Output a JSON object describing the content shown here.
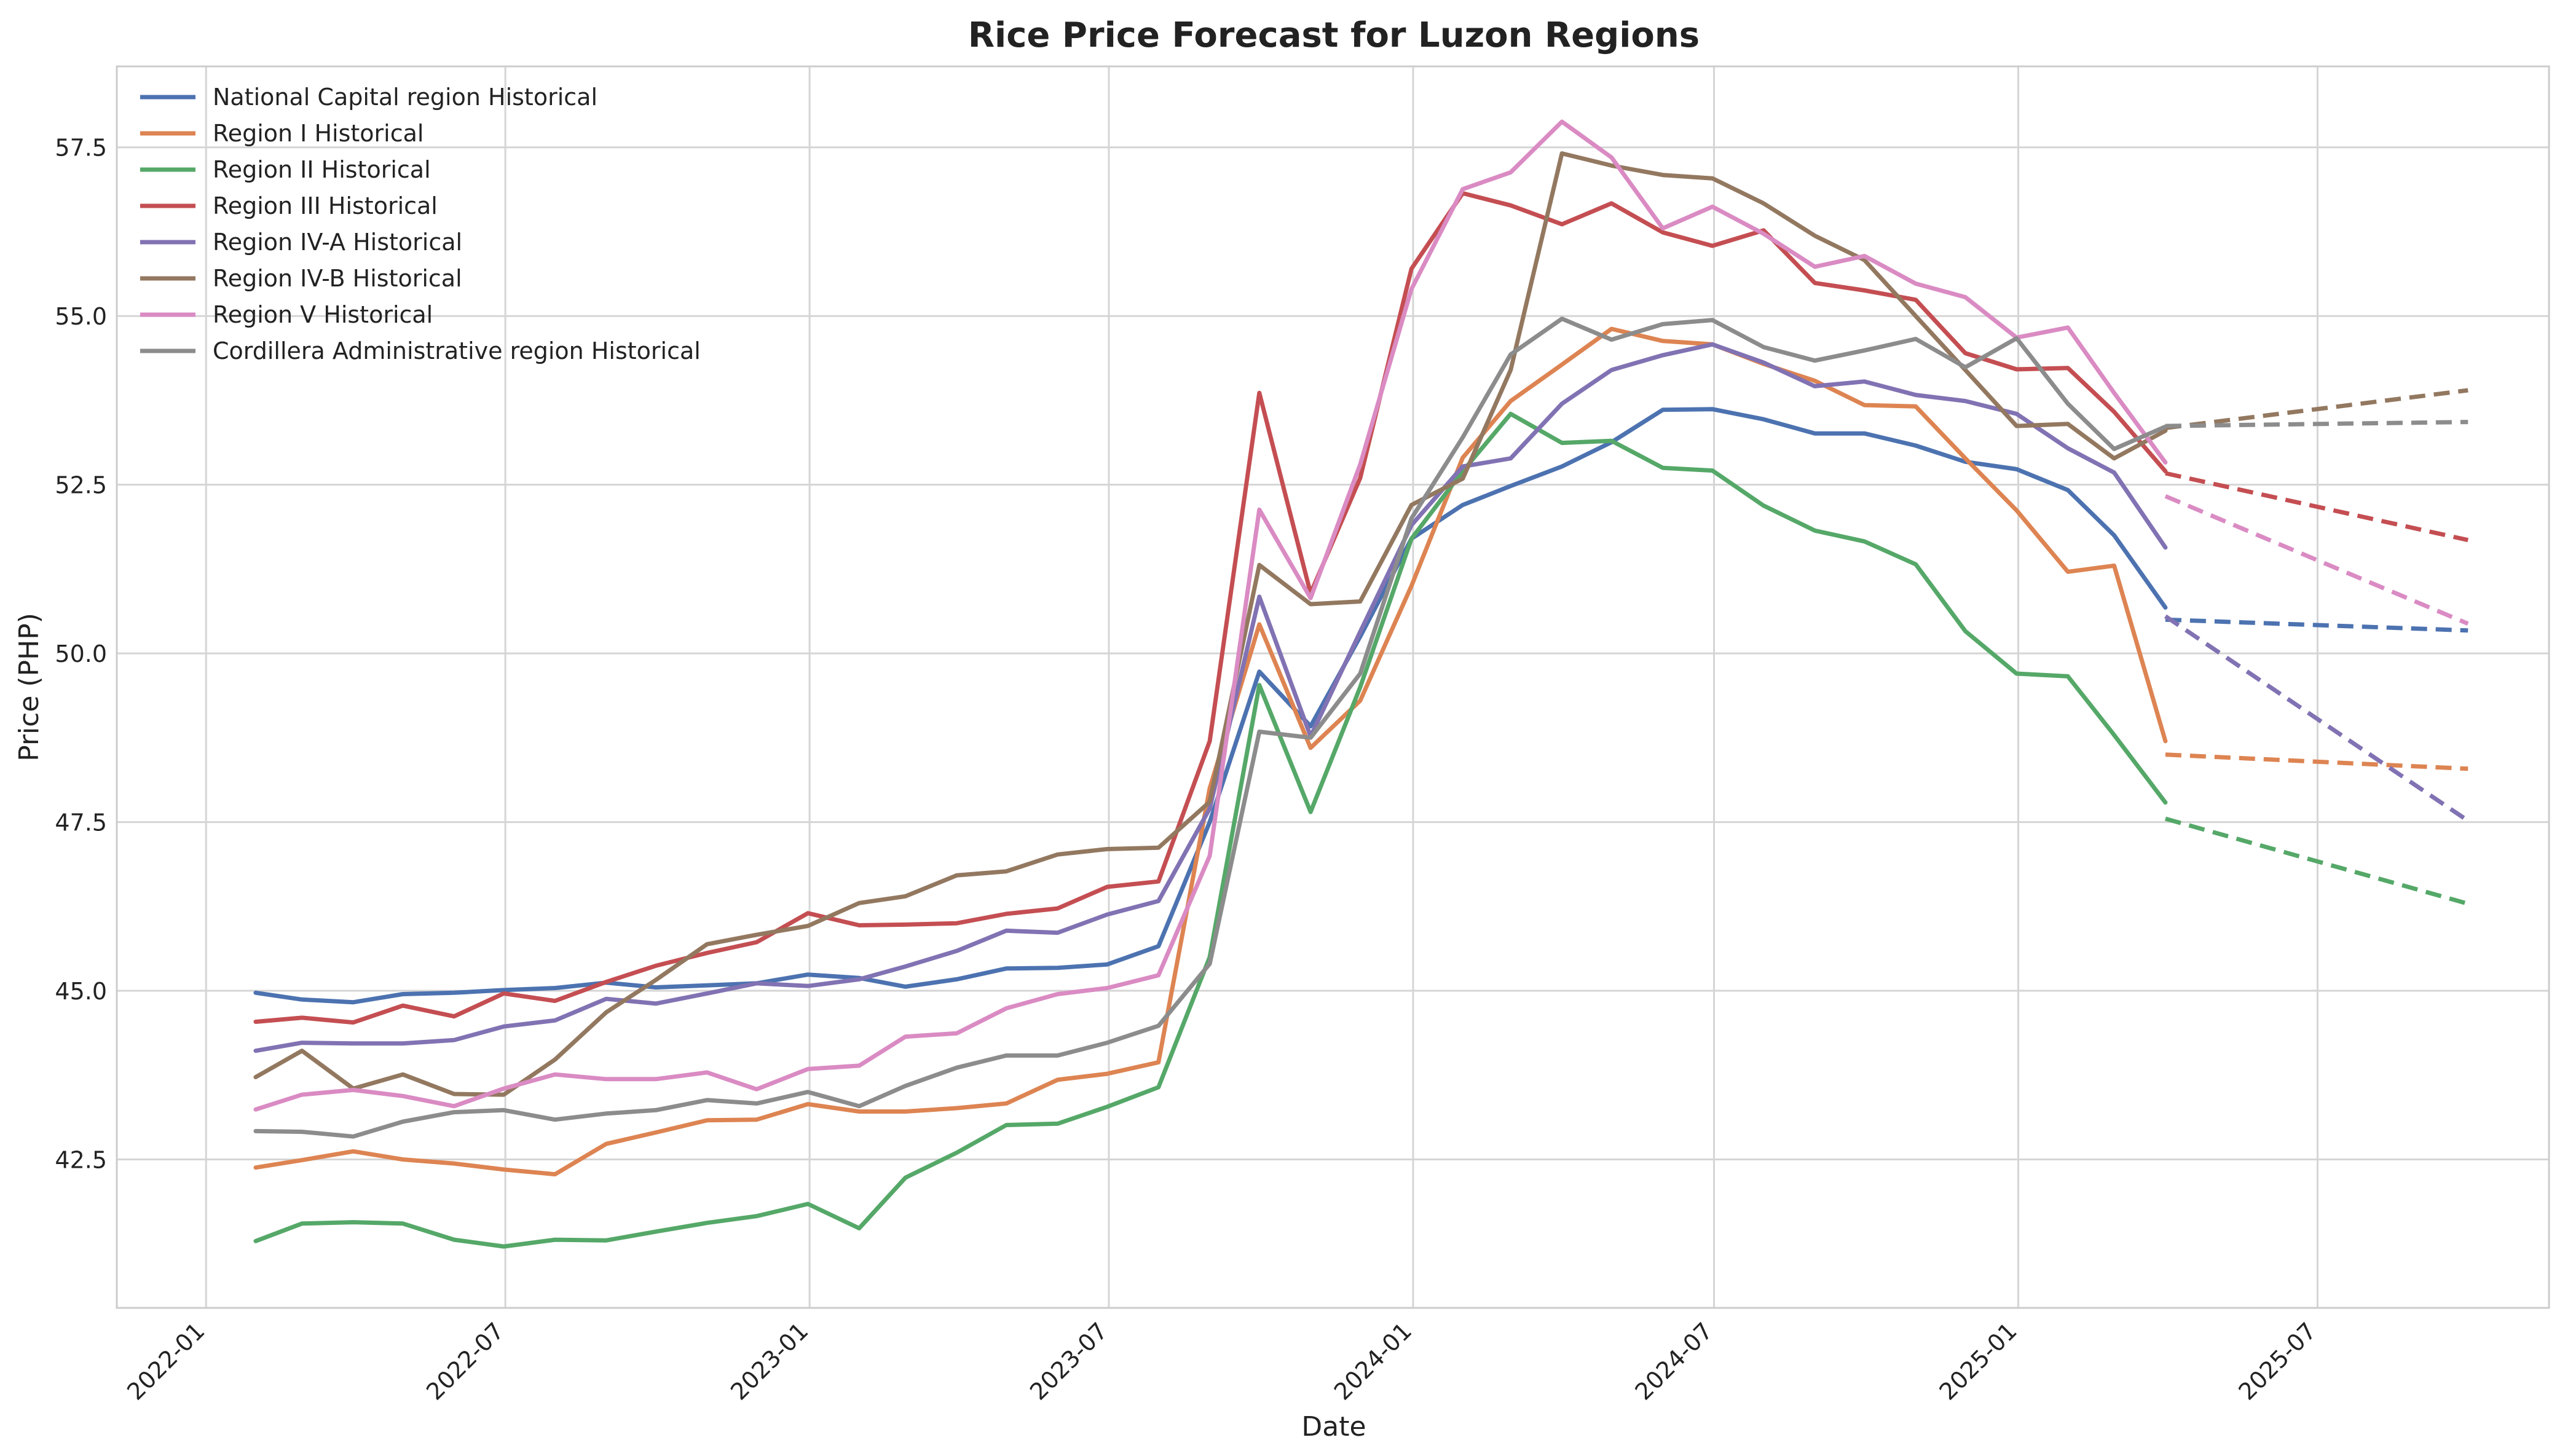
{
  "chart_data": {
    "type": "line",
    "title": "Rice Price Forecast for Luzon Regions",
    "xlabel": "Date",
    "ylabel": "Price (PHP)",
    "grid": true,
    "legend_position": "top-left",
    "x_domain": [
      "2021-11-08",
      "2025-11-18"
    ],
    "ylim": [
      40.3,
      58.7
    ],
    "x_ticks": [
      "2022-01",
      "2022-07",
      "2023-01",
      "2023-07",
      "2024-01",
      "2024-07",
      "2025-01",
      "2025-07"
    ],
    "y_ticks": [
      "42.5",
      "45.0",
      "47.5",
      "50.0",
      "52.5",
      "55.0",
      "57.5"
    ],
    "historical_dates": [
      "2022-01-31",
      "2022-02-28",
      "2022-03-31",
      "2022-04-30",
      "2022-05-31",
      "2022-06-30",
      "2022-07-31",
      "2022-08-31",
      "2022-09-30",
      "2022-10-31",
      "2022-11-30",
      "2022-12-31",
      "2023-01-31",
      "2023-02-28",
      "2023-03-31",
      "2023-04-30",
      "2023-05-31",
      "2023-06-30",
      "2023-07-31",
      "2023-08-31",
      "2023-09-30",
      "2023-10-31",
      "2023-11-30",
      "2023-12-31",
      "2024-01-31",
      "2024-02-29",
      "2024-03-31",
      "2024-04-30",
      "2024-05-31",
      "2024-06-30",
      "2024-07-31",
      "2024-08-31",
      "2024-09-30",
      "2024-10-31",
      "2024-11-30",
      "2024-12-31",
      "2025-01-31",
      "2025-02-28",
      "2025-03-31"
    ],
    "forecast_dates": [
      "2025-03-31",
      "2025-09-30"
    ],
    "series": [
      {
        "name": "National Capital region Historical",
        "color": "#4c72b0",
        "values": [
          44.97,
          44.87,
          44.83,
          44.95,
          44.97,
          45.01,
          45.04,
          45.12,
          45.05,
          45.08,
          45.11,
          45.24,
          45.19,
          45.06,
          45.17,
          45.33,
          45.34,
          45.39,
          45.66,
          47.5,
          49.73,
          48.92,
          50.25,
          51.7,
          52.2,
          52.48,
          52.77,
          53.13,
          53.61,
          53.62,
          53.47,
          53.26,
          53.26,
          53.08,
          52.84,
          52.73,
          52.42,
          51.75,
          50.68
        ],
        "forecast": [
          50.5,
          50.34
        ]
      },
      {
        "name": "Region I Historical",
        "color": "#dd8452",
        "values": [
          42.38,
          42.49,
          42.62,
          42.5,
          42.44,
          42.35,
          42.28,
          42.73,
          42.9,
          43.08,
          43.09,
          43.32,
          43.21,
          43.21,
          43.26,
          43.33,
          43.68,
          43.77,
          43.94,
          48.0,
          50.43,
          48.6,
          49.3,
          51.0,
          52.9,
          53.74,
          54.28,
          54.81,
          54.63,
          54.58,
          54.29,
          54.04,
          53.68,
          53.66,
          52.89,
          52.12,
          51.21,
          51.3,
          48.7
        ],
        "forecast": [
          48.5,
          48.29
        ]
      },
      {
        "name": "Region II Historical",
        "color": "#55a868",
        "values": [
          41.29,
          41.55,
          41.57,
          41.55,
          41.31,
          41.21,
          41.31,
          41.3,
          41.43,
          41.56,
          41.66,
          41.84,
          41.48,
          42.23,
          42.6,
          43.01,
          43.03,
          43.28,
          43.57,
          45.5,
          49.53,
          47.65,
          49.5,
          51.7,
          52.7,
          53.55,
          53.12,
          53.15,
          52.75,
          52.71,
          52.19,
          51.82,
          51.66,
          51.32,
          50.33,
          49.7,
          49.66,
          48.79,
          47.79
        ],
        "forecast": [
          47.55,
          46.29
        ]
      },
      {
        "name": "Region III Historical",
        "color": "#c44e52",
        "values": [
          44.54,
          44.6,
          44.53,
          44.78,
          44.62,
          44.96,
          44.85,
          45.13,
          45.37,
          45.56,
          45.72,
          46.15,
          45.97,
          45.98,
          46.0,
          46.14,
          46.22,
          46.54,
          46.62,
          48.7,
          53.86,
          50.89,
          52.6,
          55.7,
          56.82,
          56.64,
          56.36,
          56.67,
          56.24,
          56.04,
          56.27,
          55.49,
          55.38,
          55.24,
          54.45,
          54.21,
          54.23,
          53.58,
          52.7
        ],
        "forecast": [
          52.67,
          51.68
        ]
      },
      {
        "name": "Region IV-A Historical",
        "color": "#8172b3",
        "values": [
          44.11,
          44.23,
          44.22,
          44.22,
          44.27,
          44.47,
          44.56,
          44.88,
          44.81,
          44.96,
          45.11,
          45.07,
          45.17,
          45.36,
          45.59,
          45.89,
          45.86,
          46.13,
          46.33,
          47.7,
          50.84,
          48.77,
          50.32,
          51.9,
          52.77,
          52.89,
          53.7,
          54.2,
          54.42,
          54.58,
          54.31,
          53.96,
          54.03,
          53.83,
          53.74,
          53.55,
          53.04,
          52.68,
          51.57
        ],
        "forecast": [
          50.55,
          47.52
        ]
      },
      {
        "name": "Region IV-B Historical",
        "color": "#937860",
        "values": [
          43.72,
          44.11,
          43.55,
          43.76,
          43.47,
          43.46,
          43.98,
          44.68,
          45.16,
          45.69,
          45.83,
          45.96,
          46.3,
          46.4,
          46.71,
          46.77,
          47.02,
          47.1,
          47.12,
          47.8,
          51.31,
          50.73,
          50.77,
          52.2,
          52.59,
          54.2,
          57.41,
          57.23,
          57.09,
          57.04,
          56.67,
          56.19,
          55.83,
          55.0,
          54.2,
          53.37,
          53.4,
          52.89,
          53.3
        ],
        "forecast": [
          53.34,
          53.9
        ]
      },
      {
        "name": "Region V Historical",
        "color": "#da8bc3",
        "values": [
          43.24,
          43.46,
          43.53,
          43.44,
          43.29,
          43.55,
          43.76,
          43.69,
          43.69,
          43.79,
          43.54,
          43.84,
          43.89,
          44.32,
          44.37,
          44.74,
          44.95,
          45.04,
          45.23,
          47.0,
          52.13,
          50.82,
          52.8,
          55.4,
          56.88,
          57.13,
          57.88,
          57.35,
          56.3,
          56.62,
          56.22,
          55.73,
          55.89,
          55.48,
          55.28,
          54.68,
          54.83,
          53.86,
          52.83
        ],
        "forecast": [
          52.33,
          50.44
        ]
      },
      {
        "name": "Cordillera Administrative region Historical",
        "color": "#8c8c8c",
        "values": [
          42.92,
          42.91,
          42.84,
          43.06,
          43.2,
          43.23,
          43.09,
          43.18,
          43.23,
          43.38,
          43.33,
          43.5,
          43.29,
          43.59,
          43.86,
          44.04,
          44.04,
          44.23,
          44.48,
          45.4,
          48.84,
          48.75,
          49.7,
          52.0,
          53.2,
          54.43,
          54.96,
          54.65,
          54.88,
          54.94,
          54.54,
          54.34,
          54.49,
          54.66,
          54.24,
          54.67,
          53.7,
          53.03,
          53.36
        ],
        "forecast": [
          53.37,
          53.43
        ]
      }
    ]
  }
}
